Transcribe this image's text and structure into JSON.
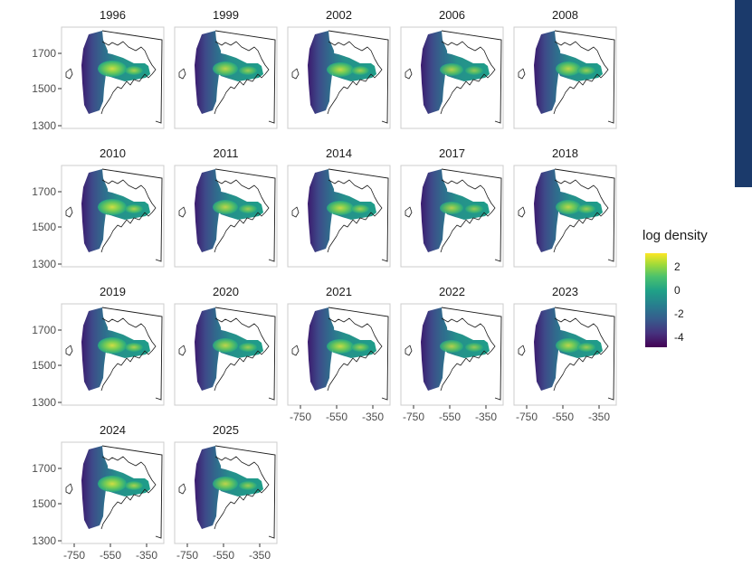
{
  "chart_data": {
    "type": "heatmap",
    "facet_labels": [
      "1996",
      "1999",
      "2002",
      "2006",
      "2008",
      "2010",
      "2011",
      "2014",
      "2017",
      "2018",
      "2019",
      "2020",
      "2021",
      "2022",
      "2023",
      "2024",
      "2025"
    ],
    "x_ticks": [
      "-750",
      "-550",
      "-350"
    ],
    "y_ticks": [
      "1700",
      "1500",
      "1300"
    ],
    "xlim": [
      -800,
      -300
    ],
    "ylim": [
      1290,
      1820
    ],
    "legend": {
      "title": "log density",
      "labels": [
        "2",
        "0",
        "-2",
        "-4"
      ],
      "values": [
        2,
        0,
        -2,
        -4
      ],
      "range": [
        -5,
        3
      ],
      "placement": "right"
    },
    "colorscale": [
      "#440154",
      "#46327e",
      "#365c8d",
      "#277f8e",
      "#1fa187",
      "#4ac16d",
      "#a0da39",
      "#fde725"
    ],
    "grid": false
  }
}
